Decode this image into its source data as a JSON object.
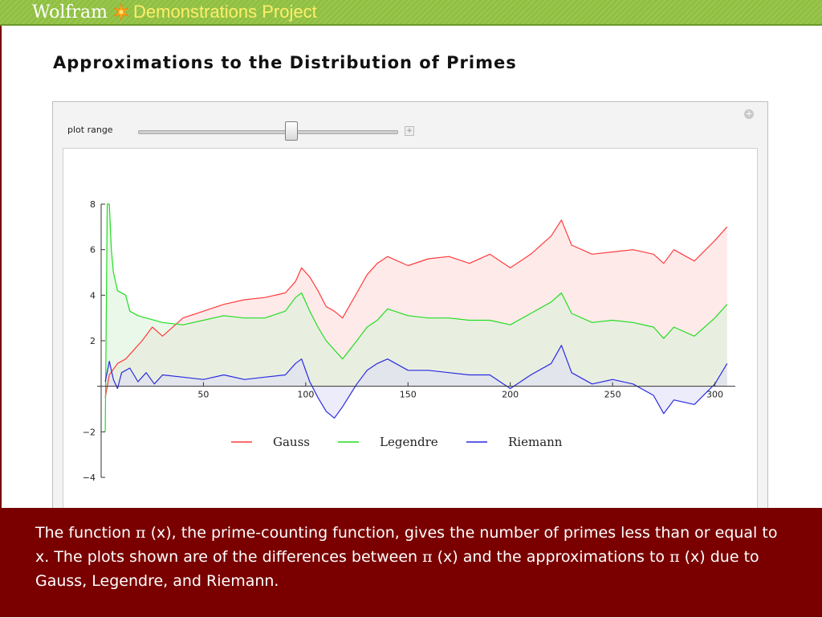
{
  "header": {
    "brand_name": "Wolfram",
    "brand_project": "Demonstrations Project",
    "logo_icon": "spikey-icon"
  },
  "page": {
    "title": "Approximations to the Distribution of Primes"
  },
  "controls": {
    "slider_label": "plot range",
    "slider_value_fraction": 0.59,
    "panel_icon": "plus-icon",
    "expand_icon": "plus-icon"
  },
  "chart_data": {
    "type": "line",
    "title": "",
    "xlabel": "",
    "ylabel": "",
    "xlim": [
      0,
      310
    ],
    "ylim": [
      -4,
      8
    ],
    "x_ticks": [
      50,
      100,
      150,
      200,
      250,
      300
    ],
    "y_ticks": [
      8,
      6,
      4,
      2,
      -2,
      -4
    ],
    "legend_position": "bottom-center",
    "series": [
      {
        "name": "Gauss",
        "color": "#ff3b3b",
        "fill": "#ffd9d9",
        "points": [
          [
            2,
            -0.5
          ],
          [
            4,
            0.5
          ],
          [
            8,
            1.0
          ],
          [
            12,
            1.2
          ],
          [
            16,
            1.6
          ],
          [
            20,
            2.0
          ],
          [
            25,
            2.6
          ],
          [
            30,
            2.2
          ],
          [
            40,
            3.0
          ],
          [
            50,
            3.3
          ],
          [
            60,
            3.6
          ],
          [
            70,
            3.8
          ],
          [
            80,
            3.9
          ],
          [
            90,
            4.1
          ],
          [
            95,
            4.6
          ],
          [
            98,
            5.2
          ],
          [
            102,
            4.8
          ],
          [
            106,
            4.2
          ],
          [
            110,
            3.5
          ],
          [
            114,
            3.3
          ],
          [
            118,
            3.0
          ],
          [
            125,
            4.1
          ],
          [
            130,
            4.9
          ],
          [
            135,
            5.4
          ],
          [
            140,
            5.7
          ],
          [
            150,
            5.3
          ],
          [
            160,
            5.6
          ],
          [
            170,
            5.7
          ],
          [
            180,
            5.4
          ],
          [
            190,
            5.8
          ],
          [
            200,
            5.2
          ],
          [
            210,
            5.8
          ],
          [
            220,
            6.6
          ],
          [
            225,
            7.3
          ],
          [
            230,
            6.2
          ],
          [
            240,
            5.8
          ],
          [
            250,
            5.9
          ],
          [
            260,
            6.0
          ],
          [
            270,
            5.8
          ],
          [
            275,
            5.4
          ],
          [
            280,
            6.0
          ],
          [
            290,
            5.5
          ],
          [
            300,
            6.4
          ],
          [
            306,
            7.0
          ]
        ]
      },
      {
        "name": "Legendre",
        "color": "#22dd22",
        "fill": "#d7f3d7",
        "points": [
          [
            2,
            -2
          ],
          [
            3,
            8
          ],
          [
            4,
            8
          ],
          [
            5,
            6.0
          ],
          [
            6,
            5.0
          ],
          [
            8,
            4.2
          ],
          [
            12,
            4.0
          ],
          [
            14,
            3.3
          ],
          [
            18,
            3.1
          ],
          [
            22,
            3.0
          ],
          [
            30,
            2.8
          ],
          [
            40,
            2.7
          ],
          [
            50,
            2.9
          ],
          [
            60,
            3.1
          ],
          [
            70,
            3.0
          ],
          [
            80,
            3.0
          ],
          [
            90,
            3.3
          ],
          [
            95,
            3.9
          ],
          [
            98,
            4.1
          ],
          [
            102,
            3.3
          ],
          [
            106,
            2.6
          ],
          [
            110,
            2.0
          ],
          [
            114,
            1.6
          ],
          [
            118,
            1.2
          ],
          [
            125,
            2.0
          ],
          [
            130,
            2.6
          ],
          [
            135,
            2.9
          ],
          [
            140,
            3.4
          ],
          [
            150,
            3.1
          ],
          [
            160,
            3.0
          ],
          [
            170,
            3.0
          ],
          [
            180,
            2.9
          ],
          [
            190,
            2.9
          ],
          [
            200,
            2.7
          ],
          [
            210,
            3.2
          ],
          [
            220,
            3.7
          ],
          [
            225,
            4.1
          ],
          [
            230,
            3.2
          ],
          [
            240,
            2.8
          ],
          [
            250,
            2.9
          ],
          [
            260,
            2.8
          ],
          [
            270,
            2.6
          ],
          [
            275,
            2.1
          ],
          [
            280,
            2.6
          ],
          [
            290,
            2.2
          ],
          [
            300,
            3.0
          ],
          [
            306,
            3.6
          ]
        ]
      },
      {
        "name": "Riemann",
        "color": "#2a2ae0",
        "fill": "#dcdcf5",
        "points": [
          [
            2,
            0.2
          ],
          [
            4,
            1.1
          ],
          [
            6,
            0.3
          ],
          [
            8,
            -0.1
          ],
          [
            10,
            0.6
          ],
          [
            14,
            0.8
          ],
          [
            18,
            0.2
          ],
          [
            22,
            0.6
          ],
          [
            26,
            0.1
          ],
          [
            30,
            0.5
          ],
          [
            40,
            0.4
          ],
          [
            50,
            0.3
          ],
          [
            60,
            0.5
          ],
          [
            70,
            0.3
          ],
          [
            80,
            0.4
          ],
          [
            90,
            0.5
          ],
          [
            95,
            1.0
          ],
          [
            98,
            1.2
          ],
          [
            102,
            0.2
          ],
          [
            106,
            -0.5
          ],
          [
            110,
            -1.1
          ],
          [
            114,
            -1.4
          ],
          [
            118,
            -0.9
          ],
          [
            125,
            0.1
          ],
          [
            130,
            0.7
          ],
          [
            135,
            1.0
          ],
          [
            140,
            1.2
          ],
          [
            150,
            0.7
          ],
          [
            160,
            0.7
          ],
          [
            170,
            0.6
          ],
          [
            180,
            0.5
          ],
          [
            190,
            0.5
          ],
          [
            200,
            -0.1
          ],
          [
            210,
            0.5
          ],
          [
            220,
            1.0
          ],
          [
            225,
            1.8
          ],
          [
            230,
            0.6
          ],
          [
            240,
            0.1
          ],
          [
            250,
            0.3
          ],
          [
            260,
            0.1
          ],
          [
            270,
            -0.4
          ],
          [
            275,
            -1.2
          ],
          [
            280,
            -0.6
          ],
          [
            290,
            -0.8
          ],
          [
            300,
            0.1
          ],
          [
            306,
            1.0
          ]
        ]
      }
    ]
  },
  "caption": {
    "line1_prefix": "The function ",
    "pi_symbol": "π",
    "line1_suffix": " (x), the prime-counting function, gives the number of primes less than or equal to x. The plots shown are of the differences between ",
    "line2_suffix": " (x) and the approximations to ",
    "line3_suffix": " (x) due to Gauss, Legendre, and Riemann."
  }
}
